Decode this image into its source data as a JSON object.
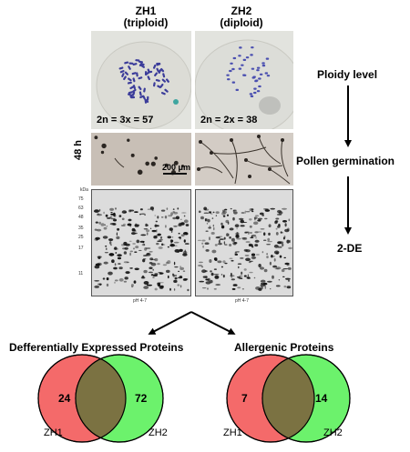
{
  "figure": {
    "columns": [
      {
        "title_line1": "ZH1",
        "title_line2": "(triploid)",
        "chromosome_count": "2n = 3x = 57"
      },
      {
        "title_line1": "ZH2",
        "title_line2": "(diploid)",
        "chromosome_count": "2n = 2x = 38"
      }
    ],
    "germination_time": "48 h",
    "scale_bar": "200 μm",
    "gel": {
      "kda_label": "kDa",
      "mw_markers": [
        "75",
        "63",
        "48",
        "35",
        "25",
        "17",
        "11"
      ],
      "ph_label": "pH 4-7"
    },
    "flow_steps": [
      "Ploidy level",
      "Pollen germination",
      "2-DE"
    ],
    "venns": [
      {
        "title": "Defferentially Expressed Proteins",
        "left_value": "24",
        "right_value": "72",
        "left_name": "ZH1",
        "right_name": "ZH2"
      },
      {
        "title": "Allergenic Proteins",
        "left_value": "7",
        "right_value": "14",
        "left_name": "ZH1",
        "right_name": "ZH2"
      }
    ],
    "colors": {
      "chromosome": "#3b3c9a",
      "venn_left": "#f46a6a",
      "venn_right": "#6cf26c",
      "venn_overlap": "#7b7242"
    }
  }
}
